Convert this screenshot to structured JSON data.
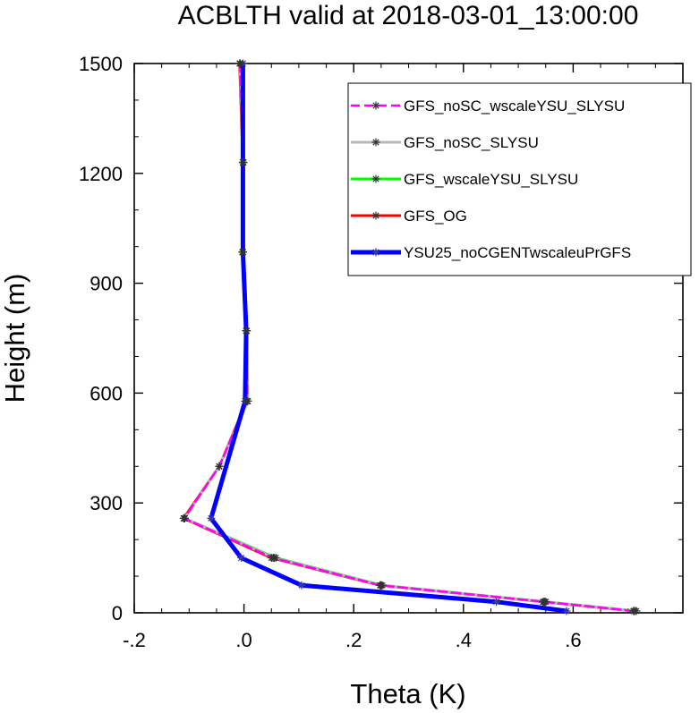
{
  "chart_data": {
    "type": "line",
    "title": "ACBLTH valid at 2018-03-01_13:00:00",
    "xlabel": "Theta (K)",
    "ylabel": "Height (m)",
    "xlim": [
      -0.2,
      0.8
    ],
    "ylim": [
      0,
      1500
    ],
    "x_ticks": [
      -0.2,
      0.0,
      0.2,
      0.4,
      0.6
    ],
    "x_tick_labels": [
      "-.2",
      ".0",
      ".2",
      ".4",
      ".6"
    ],
    "y_ticks": [
      0,
      300,
      600,
      900,
      1200,
      1500
    ],
    "y_tick_labels": [
      "0",
      "300",
      "600",
      "900",
      "1200",
      "1500"
    ],
    "legend_placement": "top-right",
    "series": [
      {
        "name": "YSU25_noCGENTwscaleuPrGFS",
        "color": "#0000ff",
        "style": "solid-thick",
        "y": [
          5,
          30,
          75,
          150,
          258,
          578,
          770,
          985,
          1230,
          1500
        ],
        "x": [
          0.588,
          0.46,
          0.105,
          -0.005,
          -0.06,
          0.002,
          0.004,
          -0.002,
          -0.002,
          -0.002
        ]
      },
      {
        "name": "GFS_OG",
        "color": "#ff0000",
        "style": "solid",
        "y": [
          5,
          30,
          75,
          150,
          258,
          400,
          578,
          770,
          985,
          1230,
          1500
        ],
        "x": [
          0.71,
          0.545,
          0.248,
          0.05,
          -0.11,
          -0.045,
          0.005,
          0.004,
          -0.003,
          -0.002,
          -0.008
        ]
      },
      {
        "name": "GFS_wscaleYSU_SLYSU",
        "color": "#00ff00",
        "style": "solid",
        "y": [
          5,
          30,
          75,
          150,
          258,
          400,
          578,
          770,
          985,
          1230,
          1500
        ],
        "x": [
          0.715,
          0.55,
          0.252,
          0.058,
          -0.108,
          -0.045,
          0.007,
          0.005,
          -0.002,
          -0.001,
          -0.007
        ]
      },
      {
        "name": "GFS_noSC_SLYSU",
        "color": "#b8b8b8",
        "style": "solid",
        "y": [
          5,
          30,
          75,
          150,
          258,
          400,
          578,
          770,
          985,
          1230,
          1500
        ],
        "x": [
          0.712,
          0.548,
          0.25,
          0.055,
          -0.108,
          -0.045,
          0.007,
          0.005,
          -0.002,
          -0.001,
          -0.007
        ]
      },
      {
        "name": "GFS_noSC_wscaleYSU_SLYSU",
        "color": "#ff00ff",
        "style": "dashed",
        "y": [
          5,
          30,
          75,
          150,
          258,
          400,
          578,
          770,
          985,
          1230,
          1500
        ],
        "x": [
          0.711,
          0.547,
          0.249,
          0.053,
          -0.109,
          -0.045,
          0.006,
          0.004,
          -0.002,
          -0.001,
          -0.007
        ]
      }
    ]
  }
}
